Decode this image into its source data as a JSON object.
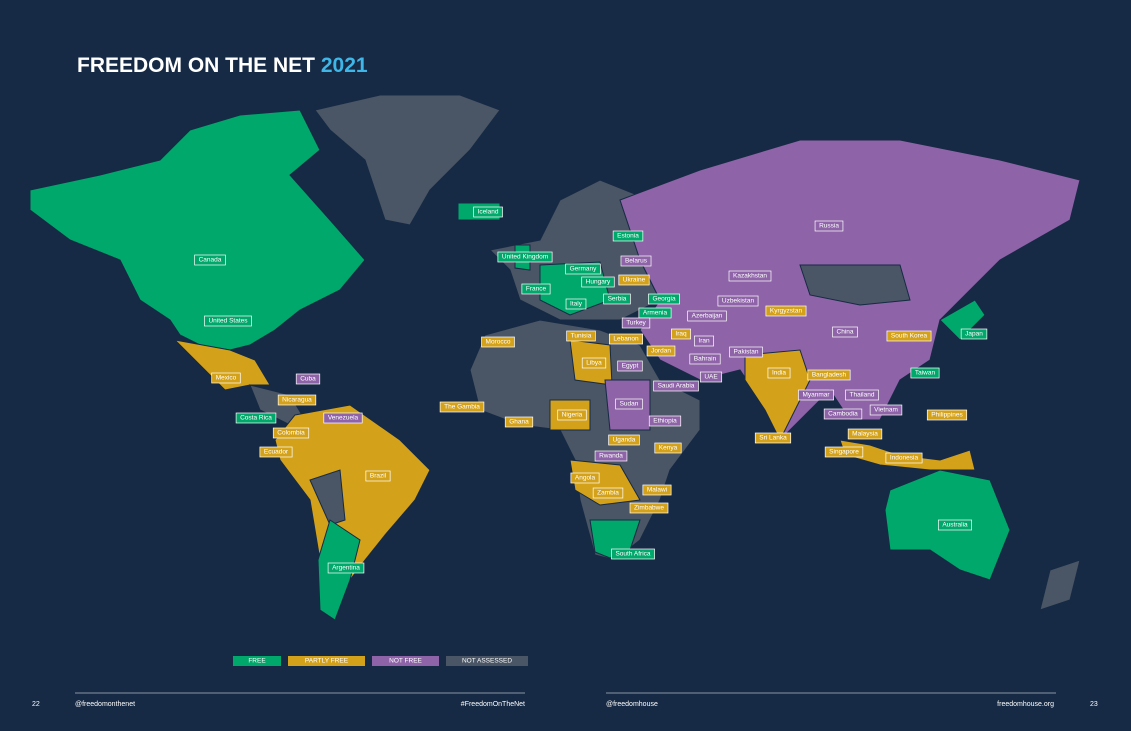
{
  "header": {
    "title": "FREEDOM ON THE NET",
    "year": "2021"
  },
  "legend": [
    {
      "label": "FREE",
      "color": "#00a86b"
    },
    {
      "label": "PARTLY FREE",
      "color": "#d4a21a"
    },
    {
      "label": "NOT FREE",
      "color": "#8e63a8"
    },
    {
      "label": "NOT ASSESSED",
      "color": "#4a5565"
    }
  ],
  "countries": [
    {
      "name": "Iceland",
      "status": "FREE"
    },
    {
      "name": "Canada",
      "status": "FREE"
    },
    {
      "name": "United States",
      "status": "FREE"
    },
    {
      "name": "Mexico",
      "status": "PARTLY FREE"
    },
    {
      "name": "Cuba",
      "status": "NOT FREE"
    },
    {
      "name": "Nicaragua",
      "status": "PARTLY FREE"
    },
    {
      "name": "Costa Rica",
      "status": "FREE"
    },
    {
      "name": "Colombia",
      "status": "PARTLY FREE"
    },
    {
      "name": "Ecuador",
      "status": "PARTLY FREE"
    },
    {
      "name": "Venezuela",
      "status": "NOT FREE"
    },
    {
      "name": "Brazil",
      "status": "PARTLY FREE"
    },
    {
      "name": "Argentina",
      "status": "FREE"
    },
    {
      "name": "United Kingdom",
      "status": "FREE"
    },
    {
      "name": "France",
      "status": "FREE"
    },
    {
      "name": "Germany",
      "status": "FREE"
    },
    {
      "name": "Hungary",
      "status": "FREE"
    },
    {
      "name": "Italy",
      "status": "FREE"
    },
    {
      "name": "Serbia",
      "status": "FREE"
    },
    {
      "name": "Estonia",
      "status": "FREE"
    },
    {
      "name": "Belarus",
      "status": "NOT FREE"
    },
    {
      "name": "Ukraine",
      "status": "PARTLY FREE"
    },
    {
      "name": "Georgia",
      "status": "FREE"
    },
    {
      "name": "Armenia",
      "status": "FREE"
    },
    {
      "name": "Azerbaijan",
      "status": "NOT FREE"
    },
    {
      "name": "Turkey",
      "status": "NOT FREE"
    },
    {
      "name": "Tunisia",
      "status": "PARTLY FREE"
    },
    {
      "name": "Morocco",
      "status": "PARTLY FREE"
    },
    {
      "name": "Libya",
      "status": "PARTLY FREE"
    },
    {
      "name": "Lebanon",
      "status": "PARTLY FREE"
    },
    {
      "name": "Jordan",
      "status": "PARTLY FREE"
    },
    {
      "name": "Iraq",
      "status": "PARTLY FREE"
    },
    {
      "name": "Iran",
      "status": "NOT FREE"
    },
    {
      "name": "Bahrain",
      "status": "NOT FREE"
    },
    {
      "name": "Egypt",
      "status": "NOT FREE"
    },
    {
      "name": "UAE",
      "status": "NOT FREE"
    },
    {
      "name": "Saudi Arabia",
      "status": "NOT FREE"
    },
    {
      "name": "Kazakhstan",
      "status": "NOT FREE"
    },
    {
      "name": "Uzbekistan",
      "status": "NOT FREE"
    },
    {
      "name": "Kyrgyzstan",
      "status": "PARTLY FREE"
    },
    {
      "name": "Pakistan",
      "status": "NOT FREE"
    },
    {
      "name": "Russia",
      "status": "NOT FREE"
    },
    {
      "name": "China",
      "status": "NOT FREE"
    },
    {
      "name": "South Korea",
      "status": "PARTLY FREE"
    },
    {
      "name": "Japan",
      "status": "FREE"
    },
    {
      "name": "Taiwan",
      "status": "FREE"
    },
    {
      "name": "India",
      "status": "PARTLY FREE"
    },
    {
      "name": "Bangladesh",
      "status": "PARTLY FREE"
    },
    {
      "name": "Myanmar",
      "status": "NOT FREE"
    },
    {
      "name": "Thailand",
      "status": "NOT FREE"
    },
    {
      "name": "Cambodia",
      "status": "NOT FREE"
    },
    {
      "name": "Vietnam",
      "status": "NOT FREE"
    },
    {
      "name": "Philippines",
      "status": "PARTLY FREE"
    },
    {
      "name": "Malaysia",
      "status": "PARTLY FREE"
    },
    {
      "name": "Singapore",
      "status": "PARTLY FREE"
    },
    {
      "name": "Indonesia",
      "status": "PARTLY FREE"
    },
    {
      "name": "Sri Lanka",
      "status": "PARTLY FREE"
    },
    {
      "name": "The Gambia",
      "status": "PARTLY FREE"
    },
    {
      "name": "Ghana",
      "status": "PARTLY FREE"
    },
    {
      "name": "Nigeria",
      "status": "PARTLY FREE"
    },
    {
      "name": "Sudan",
      "status": "NOT FREE"
    },
    {
      "name": "Ethiopia",
      "status": "NOT FREE"
    },
    {
      "name": "Uganda",
      "status": "PARTLY FREE"
    },
    {
      "name": "Kenya",
      "status": "PARTLY FREE"
    },
    {
      "name": "Rwanda",
      "status": "NOT FREE"
    },
    {
      "name": "Angola",
      "status": "PARTLY FREE"
    },
    {
      "name": "Zambia",
      "status": "PARTLY FREE"
    },
    {
      "name": "Malawi",
      "status": "PARTLY FREE"
    },
    {
      "name": "Zimbabwe",
      "status": "PARTLY FREE"
    },
    {
      "name": "South Africa",
      "status": "FREE"
    },
    {
      "name": "Australia",
      "status": "FREE"
    }
  ],
  "footer": {
    "left_page": "22",
    "left_handle": "@freedomonthenet",
    "left_hashtag": "#FreedomOnTheNet",
    "right_handle": "@freedomhouse",
    "right_site": "freedomhouse.org",
    "right_page": "23"
  }
}
